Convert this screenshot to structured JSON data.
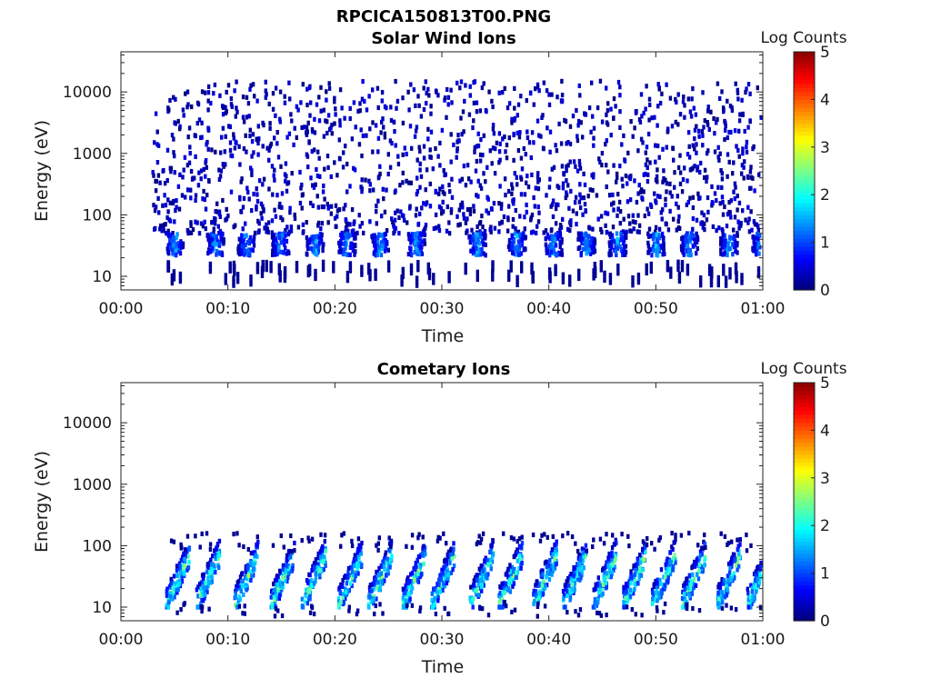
{
  "figure_title": "RPCICA150813T00.PNG",
  "chart_data": [
    {
      "type": "heatmap",
      "title": "Solar Wind Ions",
      "xlabel": "Time",
      "ylabel": "Energy (eV)",
      "x_ticks": [
        "00:00",
        "00:10",
        "00:20",
        "00:30",
        "00:40",
        "00:50",
        "01:00"
      ],
      "x_range_minutes": [
        0,
        60
      ],
      "y_scale": "log",
      "y_ticks": [
        10,
        100,
        1000,
        10000
      ],
      "y_ticks_labels": [
        "10",
        "100",
        "1000",
        "10000"
      ],
      "y_range": [
        6,
        45000
      ],
      "colorbar": {
        "label": "Log Counts",
        "range": [
          0,
          5
        ],
        "ticks": [
          "0",
          "1",
          "2",
          "3",
          "4",
          "5"
        ],
        "colormap": "jet"
      },
      "data_time_extent_minutes": [
        2.8,
        60
      ],
      "features": [
        {
          "kind": "sparse scatter",
          "energy_range": [
            50,
            15000
          ],
          "log_counts": [
            0,
            0.5
          ]
        },
        {
          "kind": "recurring dense bursts",
          "energy_range": [
            22,
            50
          ],
          "log_counts": [
            0,
            1.8
          ],
          "times_minutes": [
            4.9,
            8.7,
            11.6,
            14.8,
            18.0,
            21.0,
            24.1,
            27.5,
            33.2,
            36.9,
            40.3,
            43.4,
            46.3,
            49.9,
            53.0,
            56.7,
            59.7
          ]
        }
      ]
    },
    {
      "type": "heatmap",
      "title": "Cometary Ions",
      "xlabel": "Time",
      "ylabel": "Energy (eV)",
      "x_ticks": [
        "00:00",
        "00:10",
        "00:20",
        "00:30",
        "00:40",
        "00:50",
        "01:00"
      ],
      "x_range_minutes": [
        0,
        60
      ],
      "y_scale": "log",
      "y_ticks": [
        10,
        100,
        1000,
        10000
      ],
      "y_ticks_labels": [
        "10",
        "100",
        "1000",
        "10000"
      ],
      "y_range": [
        6,
        45000
      ],
      "colorbar": {
        "label": "Log Counts",
        "range": [
          0,
          5
        ],
        "ticks": [
          "0",
          "1",
          "2",
          "3",
          "4",
          "5"
        ],
        "colormap": "jet"
      },
      "data_time_extent_minutes": [
        3.5,
        60
      ],
      "features": [
        {
          "kind": "rising bursts",
          "energy_range": [
            10,
            160
          ],
          "log_counts": [
            0,
            2.8
          ],
          "times_minutes": [
            5.2,
            8.0,
            11.6,
            15.0,
            17.9,
            21.3,
            24.1,
            27.3,
            30.0,
            33.6,
            36.3,
            39.5,
            42.3,
            45.1,
            47.9,
            50.6,
            53.4,
            56.7,
            59.5
          ]
        }
      ]
    }
  ]
}
